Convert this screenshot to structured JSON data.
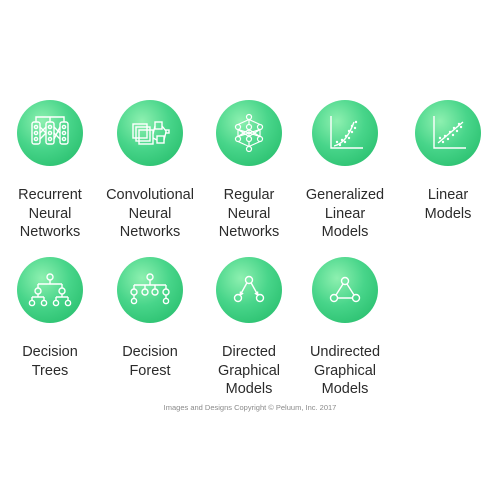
{
  "items": [
    {
      "icon": "recurrent-network-icon",
      "lines": [
        "Recurrent",
        "Neural",
        "Networks"
      ]
    },
    {
      "icon": "convolutional-network-icon",
      "lines": [
        "Convolutional",
        "Neural",
        "Networks"
      ]
    },
    {
      "icon": "neural-network-icon",
      "lines": [
        "Regular",
        "Neural",
        "Networks"
      ]
    },
    {
      "icon": "scatter-regression-icon",
      "lines": [
        "Generalized",
        "Linear",
        "Models"
      ]
    },
    {
      "icon": "scatter-linear-icon",
      "lines": [
        "Linear",
        "Models"
      ]
    },
    {
      "icon": "decision-tree-icon",
      "lines": [
        "Decision",
        "Trees"
      ]
    },
    {
      "icon": "decision-forest-icon",
      "lines": [
        "Decision",
        "Forest"
      ]
    },
    {
      "icon": "directed-graph-icon",
      "lines": [
        "Directed",
        "Graphical",
        "Models"
      ]
    },
    {
      "icon": "undirected-graph-icon",
      "lines": [
        "Undirected",
        "Graphical",
        "Models"
      ]
    }
  ],
  "copyright": "Images and Designs Copyright © Peluum, Inc. 2017",
  "colors": {
    "circle": "#2ec873",
    "icon_stroke": "#ffffff",
    "text": "#2b2b2b"
  }
}
